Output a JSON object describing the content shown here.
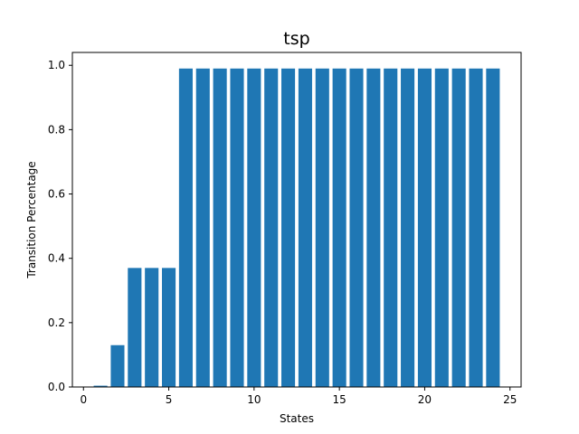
{
  "chart_data": {
    "type": "bar",
    "title": "tsp",
    "xlabel": "States",
    "ylabel": "Transition Percentage",
    "x": [
      1,
      2,
      3,
      4,
      5,
      6,
      7,
      8,
      9,
      10,
      11,
      12,
      13,
      14,
      15,
      16,
      17,
      18,
      19,
      20,
      21,
      22,
      23,
      24
    ],
    "values": [
      0.004,
      0.13,
      0.37,
      0.37,
      0.37,
      0.99,
      0.99,
      0.99,
      0.99,
      0.99,
      0.99,
      0.99,
      0.99,
      0.99,
      0.99,
      0.99,
      0.99,
      0.99,
      0.99,
      0.99,
      0.99,
      0.99,
      0.99,
      0.99
    ],
    "xlim": [
      -0.65,
      25.65
    ],
    "ylim": [
      0,
      1.04
    ],
    "xticks": [
      0,
      5,
      10,
      15,
      20,
      25
    ],
    "xtick_labels": [
      "0",
      "5",
      "10",
      "15",
      "20",
      "25"
    ],
    "yticks": [
      0.0,
      0.2,
      0.4,
      0.6,
      0.8,
      1.0
    ],
    "ytick_labels": [
      "0.0",
      "0.2",
      "0.4",
      "0.6",
      "0.8",
      "1.0"
    ],
    "bar_color": "#1f77b4",
    "grid": false,
    "legend": "none"
  }
}
